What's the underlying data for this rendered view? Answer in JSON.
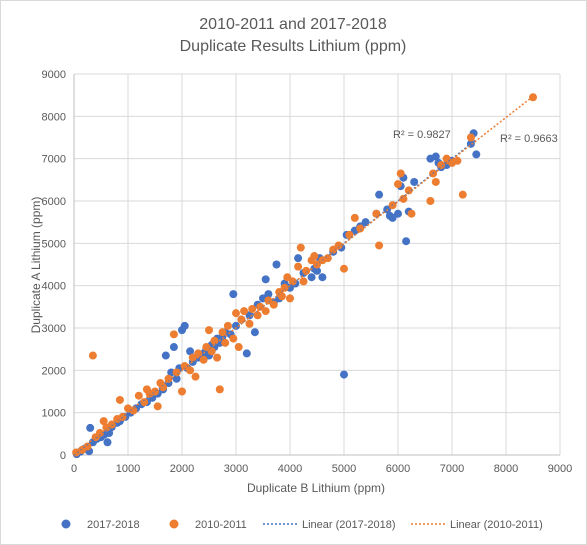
{
  "chart_data": {
    "type": "scatter",
    "title": [
      "2010-2011 and 2017-2018",
      "Duplicate Results Lithium (ppm)"
    ],
    "xlabel": "Duplicate B Lithium (ppm)",
    "ylabel": "Duplicate A Lithium (ppm)",
    "xlim": [
      0,
      9000
    ],
    "ylim": [
      0,
      9000
    ],
    "xticks": [
      "0",
      "1000",
      "2000",
      "3000",
      "4000",
      "5000",
      "6000",
      "7000",
      "8000",
      "9000"
    ],
    "yticks": [
      "0",
      "1000",
      "2000",
      "3000",
      "4000",
      "5000",
      "6000",
      "7000",
      "8000",
      "9000"
    ],
    "grid": true,
    "legend_position": "bottom",
    "series": [
      {
        "name": "2017-2018",
        "color": "#4472c4",
        "points": [
          [
            50,
            20
          ],
          [
            120,
            80
          ],
          [
            200,
            150
          ],
          [
            280,
            90
          ],
          [
            300,
            640
          ],
          [
            350,
            300
          ],
          [
            420,
            380
          ],
          [
            500,
            420
          ],
          [
            560,
            480
          ],
          [
            620,
            300
          ],
          [
            650,
            520
          ],
          [
            700,
            660
          ],
          [
            800,
            760
          ],
          [
            850,
            800
          ],
          [
            950,
            900
          ],
          [
            1050,
            1000
          ],
          [
            1150,
            1100
          ],
          [
            1250,
            1200
          ],
          [
            1350,
            1250
          ],
          [
            1450,
            1350
          ],
          [
            1550,
            1450
          ],
          [
            1650,
            1550
          ],
          [
            1700,
            2350
          ],
          [
            1750,
            1700
          ],
          [
            1800,
            1950
          ],
          [
            1850,
            2550
          ],
          [
            1900,
            1800
          ],
          [
            1950,
            2050
          ],
          [
            2000,
            2950
          ],
          [
            2050,
            3050
          ],
          [
            2100,
            2050
          ],
          [
            2150,
            2450
          ],
          [
            2200,
            2200
          ],
          [
            2300,
            2300
          ],
          [
            2400,
            2400
          ],
          [
            2450,
            2500
          ],
          [
            2500,
            2350
          ],
          [
            2550,
            2600
          ],
          [
            2600,
            2550
          ],
          [
            2650,
            2750
          ],
          [
            2700,
            2650
          ],
          [
            2750,
            2800
          ],
          [
            2800,
            2900
          ],
          [
            2900,
            2850
          ],
          [
            2950,
            3800
          ],
          [
            3000,
            3050
          ],
          [
            3100,
            3200
          ],
          [
            3200,
            2400
          ],
          [
            3250,
            3300
          ],
          [
            3350,
            2900
          ],
          [
            3400,
            3550
          ],
          [
            3500,
            3700
          ],
          [
            3550,
            4150
          ],
          [
            3600,
            3800
          ],
          [
            3700,
            3600
          ],
          [
            3750,
            4500
          ],
          [
            3800,
            3700
          ],
          [
            3900,
            4050
          ],
          [
            4000,
            3950
          ],
          [
            4100,
            4050
          ],
          [
            4150,
            4650
          ],
          [
            4250,
            4300
          ],
          [
            4400,
            4200
          ],
          [
            4450,
            4400
          ],
          [
            4500,
            4350
          ],
          [
            4550,
            4650
          ],
          [
            4600,
            4200
          ],
          [
            4800,
            4800
          ],
          [
            4950,
            4900
          ],
          [
            5000,
            1900
          ],
          [
            5050,
            5200
          ],
          [
            5200,
            5300
          ],
          [
            5300,
            5400
          ],
          [
            5400,
            5500
          ],
          [
            5600,
            5700
          ],
          [
            5650,
            6150
          ],
          [
            5800,
            5800
          ],
          [
            5850,
            5650
          ],
          [
            5900,
            5600
          ],
          [
            6000,
            5700
          ],
          [
            6050,
            6350
          ],
          [
            6100,
            6550
          ],
          [
            6150,
            5050
          ],
          [
            6200,
            5750
          ],
          [
            6300,
            6450
          ],
          [
            6600,
            7000
          ],
          [
            6700,
            7050
          ],
          [
            6750,
            6900
          ],
          [
            6800,
            6800
          ],
          [
            6900,
            6850
          ],
          [
            7000,
            6950
          ],
          [
            7350,
            7350
          ],
          [
            7400,
            7600
          ],
          [
            7450,
            7100
          ]
        ]
      },
      {
        "name": "2010-2011",
        "color": "#ed7d31",
        "points": [
          [
            40,
            60
          ],
          [
            150,
            120
          ],
          [
            250,
            200
          ],
          [
            350,
            2350
          ],
          [
            400,
            420
          ],
          [
            480,
            520
          ],
          [
            550,
            800
          ],
          [
            600,
            650
          ],
          [
            700,
            720
          ],
          [
            800,
            850
          ],
          [
            850,
            1300
          ],
          [
            900,
            900
          ],
          [
            1000,
            1100
          ],
          [
            1100,
            1050
          ],
          [
            1200,
            1400
          ],
          [
            1300,
            1250
          ],
          [
            1350,
            1550
          ],
          [
            1400,
            1450
          ],
          [
            1500,
            1500
          ],
          [
            1550,
            1150
          ],
          [
            1600,
            1700
          ],
          [
            1650,
            1600
          ],
          [
            1750,
            1800
          ],
          [
            1850,
            2850
          ],
          [
            1900,
            1950
          ],
          [
            2000,
            1500
          ],
          [
            2050,
            2100
          ],
          [
            2150,
            2000
          ],
          [
            2200,
            2300
          ],
          [
            2250,
            1850
          ],
          [
            2300,
            2400
          ],
          [
            2400,
            2250
          ],
          [
            2450,
            2550
          ],
          [
            2500,
            2950
          ],
          [
            2550,
            2450
          ],
          [
            2600,
            2700
          ],
          [
            2650,
            2300
          ],
          [
            2700,
            1550
          ],
          [
            2750,
            2900
          ],
          [
            2800,
            2650
          ],
          [
            2850,
            3050
          ],
          [
            2950,
            2750
          ],
          [
            3000,
            3350
          ],
          [
            3050,
            2550
          ],
          [
            3100,
            3200
          ],
          [
            3150,
            3400
          ],
          [
            3250,
            3100
          ],
          [
            3300,
            3450
          ],
          [
            3400,
            3300
          ],
          [
            3450,
            3500
          ],
          [
            3550,
            3400
          ],
          [
            3600,
            3650
          ],
          [
            3700,
            3550
          ],
          [
            3800,
            3850
          ],
          [
            3850,
            3750
          ],
          [
            3900,
            3950
          ],
          [
            3950,
            4200
          ],
          [
            4000,
            3700
          ],
          [
            4050,
            4100
          ],
          [
            4150,
            4450
          ],
          [
            4200,
            4900
          ],
          [
            4250,
            4100
          ],
          [
            4300,
            4350
          ],
          [
            4400,
            4600
          ],
          [
            4450,
            4700
          ],
          [
            4500,
            4500
          ],
          [
            4600,
            4600
          ],
          [
            4700,
            4650
          ],
          [
            4800,
            4850
          ],
          [
            4900,
            4950
          ],
          [
            5000,
            4400
          ],
          [
            5100,
            5200
          ],
          [
            5200,
            5600
          ],
          [
            5300,
            5350
          ],
          [
            5600,
            5700
          ],
          [
            5650,
            4950
          ],
          [
            5900,
            5900
          ],
          [
            6000,
            6400
          ],
          [
            6050,
            6650
          ],
          [
            6100,
            6050
          ],
          [
            6200,
            6250
          ],
          [
            6250,
            5700
          ],
          [
            6600,
            6000
          ],
          [
            6650,
            6650
          ],
          [
            6700,
            6450
          ],
          [
            6800,
            6850
          ],
          [
            6900,
            7000
          ],
          [
            7000,
            6900
          ],
          [
            7100,
            6950
          ],
          [
            7200,
            6150
          ],
          [
            7350,
            7500
          ],
          [
            8500,
            8450
          ]
        ]
      }
    ],
    "trendlines": [
      {
        "name": "Linear (2017-2018)",
        "color": "#4472c4",
        "x0": 0,
        "y0": 0,
        "x1": 7450,
        "y1": 7450,
        "r2": "R² = 0.9827"
      },
      {
        "name": "Linear (2010-2011)",
        "color": "#ed7d31",
        "x0": 0,
        "y0": 20,
        "x1": 8550,
        "y1": 8520,
        "r2": "R² = 0.9663"
      }
    ]
  }
}
